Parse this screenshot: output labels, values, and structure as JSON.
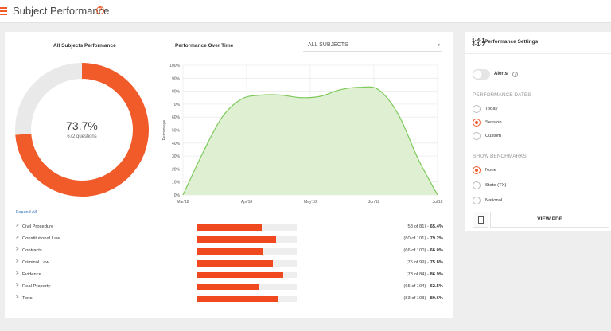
{
  "header": {
    "title": "Subject Performance",
    "help_glyph": "?"
  },
  "donut": {
    "title": "All Subjects Performance",
    "value_label": "73.7%",
    "sub_label": "672 questions",
    "percent": 73.7,
    "fill_color": "#f15a29",
    "track_color": "#e9e9e9"
  },
  "chart_data": {
    "type": "area",
    "title": "Performance Over Time",
    "ylabel": "Percentage",
    "xlabel": "",
    "x": [
      0,
      1,
      2,
      3,
      4,
      5,
      6,
      7,
      8,
      9,
      10,
      11,
      12,
      13
    ],
    "y": [
      0,
      32,
      60,
      74,
      77,
      77,
      75,
      76,
      81,
      83,
      81,
      62,
      28,
      0
    ],
    "xlim": [
      0,
      13
    ],
    "ylim": [
      0,
      100
    ],
    "x_ticks": [
      {
        "value": 0,
        "label": "Mar'18"
      },
      {
        "value": 3.25,
        "label": "Apr'18"
      },
      {
        "value": 6.5,
        "label": "May'18"
      },
      {
        "value": 9.75,
        "label": "Jun'18"
      },
      {
        "value": 13,
        "label": "Jul'18"
      }
    ],
    "y_ticks": [
      "0%",
      "10%",
      "20%",
      "30%",
      "40%",
      "50%",
      "60%",
      "70%",
      "80%",
      "90%",
      "100%"
    ],
    "grid": true,
    "line_color": "#7cc95a",
    "fill_color": "#dff0d2"
  },
  "filter": {
    "selected": "ALL SUBJECTS",
    "caret": "▾"
  },
  "subjects": {
    "expand_label": "Expand All",
    "bar_color": "#f0491f",
    "rows": [
      {
        "chev": ">",
        "name": "Civil Procedure",
        "detail": "(53 of 81) - ",
        "pct_label": "65.4%",
        "pct": 65.4
      },
      {
        "chev": ">",
        "name": "Constitutional Law",
        "detail": "(80 of 101) - ",
        "pct_label": "79.2%",
        "pct": 79.2
      },
      {
        "chev": ">",
        "name": "Contracts",
        "detail": "(66 of 100) - ",
        "pct_label": "66.0%",
        "pct": 66.0
      },
      {
        "chev": ">",
        "name": "Criminal Law",
        "detail": "(75 of 99) - ",
        "pct_label": "75.8%",
        "pct": 75.8
      },
      {
        "chev": ">",
        "name": "Evidence",
        "detail": "(73 of 84) - ",
        "pct_label": "86.9%",
        "pct": 86.9
      },
      {
        "chev": ">",
        "name": "Real Property",
        "detail": "(65 of 104) - ",
        "pct_label": "62.5%",
        "pct": 62.5
      },
      {
        "chev": ">",
        "name": "Torts",
        "detail": "(83 of 103) - ",
        "pct_label": "80.6%",
        "pct": 80.6
      }
    ]
  },
  "settings": {
    "title": "Performance Settings",
    "alerts_label": "Alerts",
    "info_glyph": "i",
    "dates_heading": "PERFORMANCE DATES",
    "dates_options": [
      {
        "label": "Today",
        "selected": false
      },
      {
        "label": "Session",
        "selected": true
      },
      {
        "label": "Custom",
        "selected": false
      }
    ],
    "benchmarks_heading": "SHOW BENCHMARKS",
    "benchmark_options": [
      {
        "label": "None",
        "selected": true
      },
      {
        "label": "State (TX)",
        "selected": false
      },
      {
        "label": "National",
        "selected": false
      }
    ],
    "view_pdf_label": "VIEW PDF"
  }
}
